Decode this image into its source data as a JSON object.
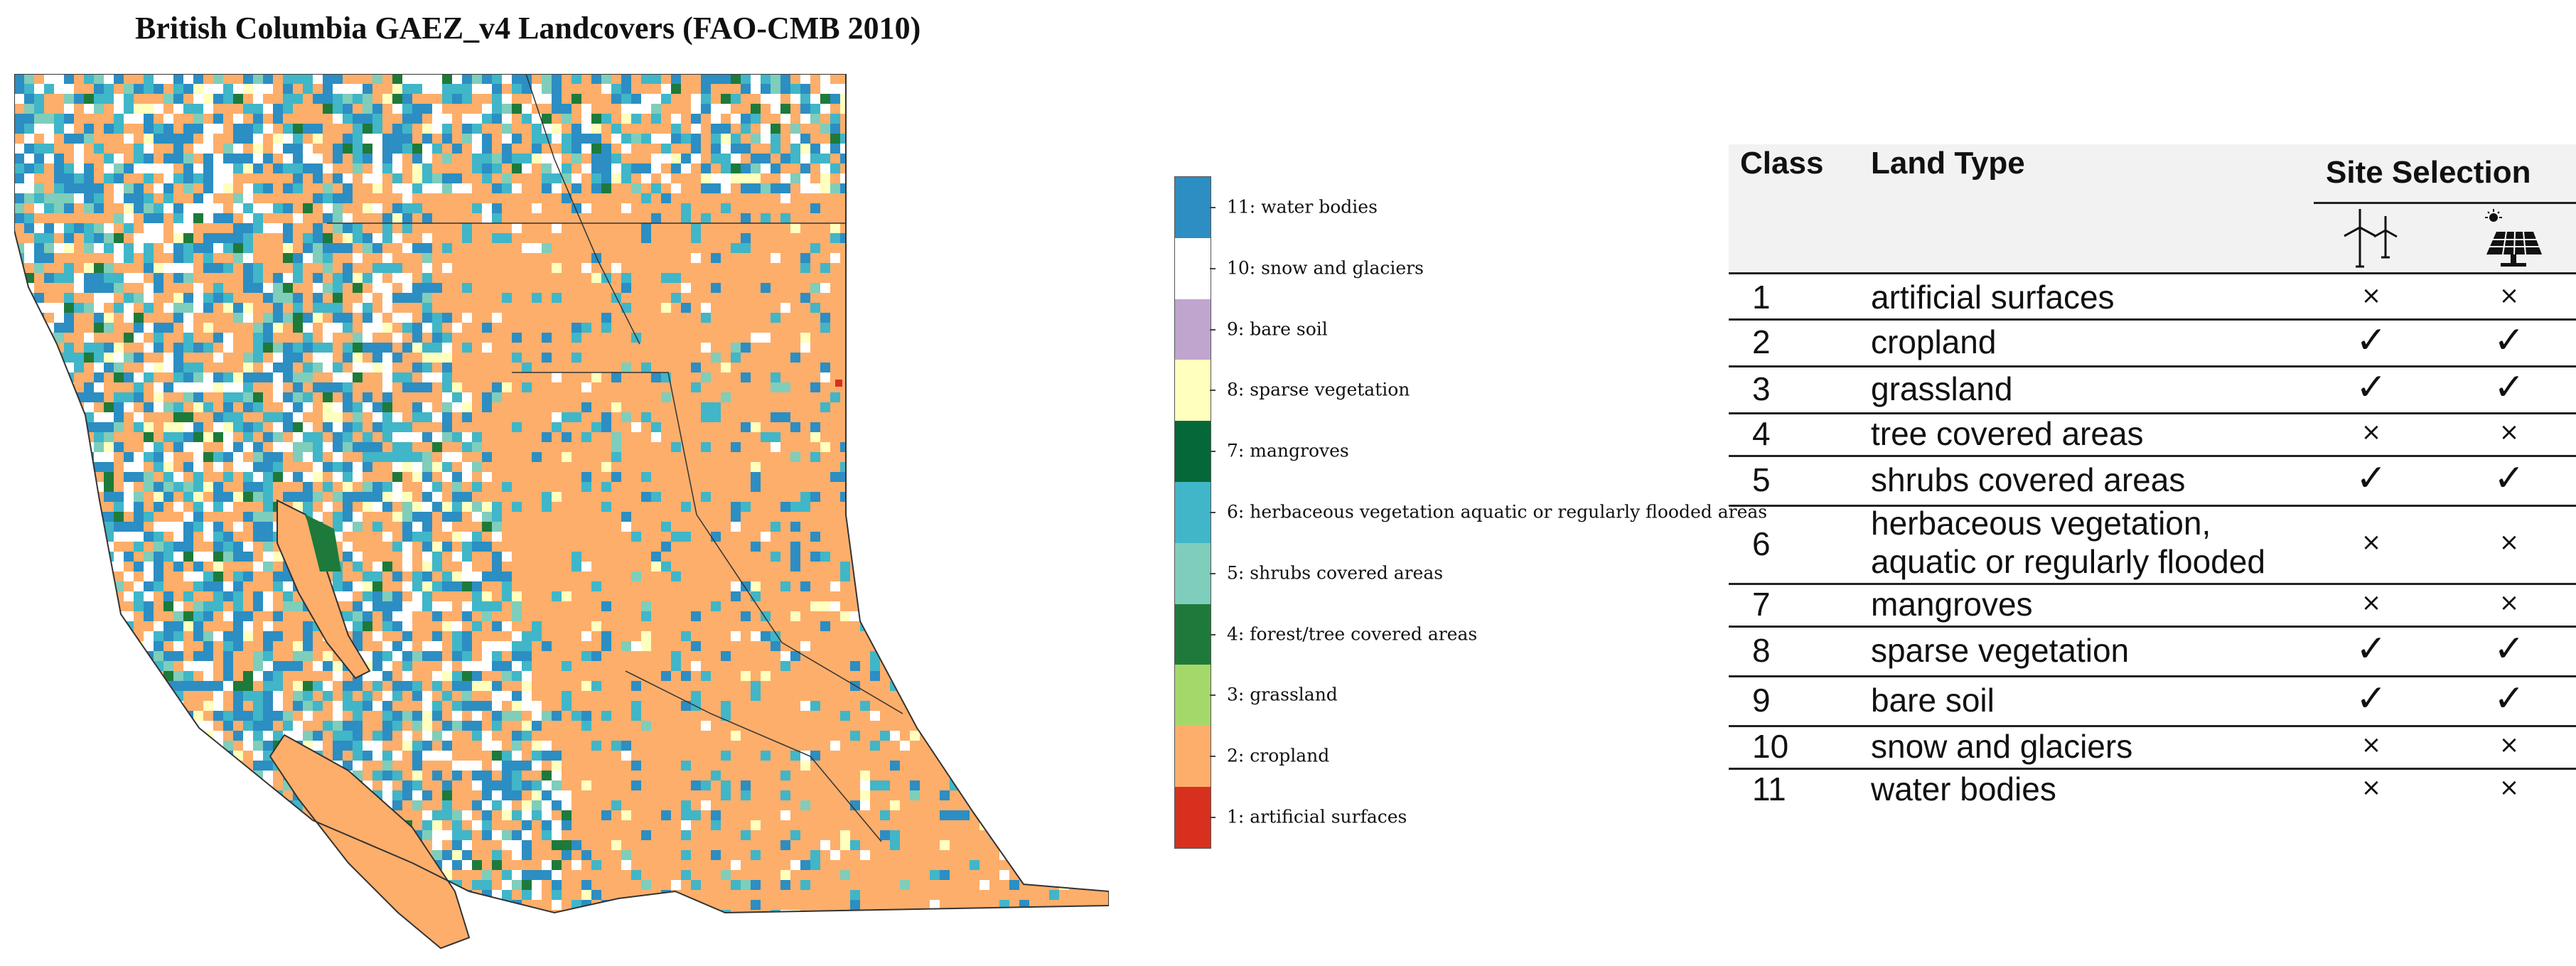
{
  "title": "British Columbia GAEZ_v4 Landcovers (FAO-CMB 2010)",
  "colors": {
    "water": "#2c8ec2",
    "snow": "#ffffff",
    "bare": "#c0a5cf",
    "sparse": "#ffffbe",
    "mangroves": "#056838",
    "herbaceous": "#40b6c8",
    "shrubs": "#7fcdbb",
    "forest": "#1e7a3a",
    "grassland": "#a5d86a",
    "cropland": "#fdae6b",
    "artificial": "#d7301f"
  },
  "legend": [
    {
      "label": "11: water bodies",
      "color": "#2c8ec2"
    },
    {
      "label": "10: snow and glaciers",
      "color": "#ffffff"
    },
    {
      "label": "9: bare soil",
      "color": "#c0a5cf"
    },
    {
      "label": "8: sparse vegetation",
      "color": "#ffffbe"
    },
    {
      "label": "7: mangroves",
      "color": "#056838"
    },
    {
      "label": "6: herbaceous vegetation aquatic or regularly flooded areas",
      "color": "#40b6c8"
    },
    {
      "label": "5: shrubs covered areas",
      "color": "#7fcdbb"
    },
    {
      "label": "4: forest/tree covered areas",
      "color": "#1e7a3a"
    },
    {
      "label": "3: grassland",
      "color": "#a5d86a"
    },
    {
      "label": "2: cropland",
      "color": "#fdae6b"
    },
    {
      "label": "1: artificial surfaces",
      "color": "#d7301f"
    }
  ],
  "table": {
    "headers": {
      "class": "Class",
      "land_type": "Land Type",
      "site_selection": "Site Selection"
    },
    "icons": {
      "wind": "wind-turbine-icon",
      "solar": "solar-panel-icon"
    },
    "rows": [
      {
        "class": "1",
        "land_type": "artificial surfaces",
        "wind": "×",
        "solar": "×"
      },
      {
        "class": "2",
        "land_type": "cropland",
        "wind": "✓",
        "solar": "✓"
      },
      {
        "class": "3",
        "land_type": "grassland",
        "wind": "✓",
        "solar": "✓"
      },
      {
        "class": "4",
        "land_type": "tree covered areas",
        "wind": "×",
        "solar": "×"
      },
      {
        "class": "5",
        "land_type": "shrubs covered areas",
        "wind": "✓",
        "solar": "✓"
      },
      {
        "class": "6",
        "land_type": "herbaceous vegetation,",
        "land_type_2": "aquatic or regularly flooded",
        "wind": "×",
        "solar": "×"
      },
      {
        "class": "7",
        "land_type": "mangroves",
        "wind": "×",
        "solar": "×"
      },
      {
        "class": "8",
        "land_type": "sparse vegetation",
        "wind": "✓",
        "solar": "✓"
      },
      {
        "class": "9",
        "land_type": "bare soil",
        "wind": "✓",
        "solar": "✓"
      },
      {
        "class": "10",
        "land_type": "snow and glaciers",
        "wind": "×",
        "solar": "×"
      },
      {
        "class": "11",
        "land_type": "water bodies",
        "wind": "×",
        "solar": "×"
      }
    ]
  }
}
